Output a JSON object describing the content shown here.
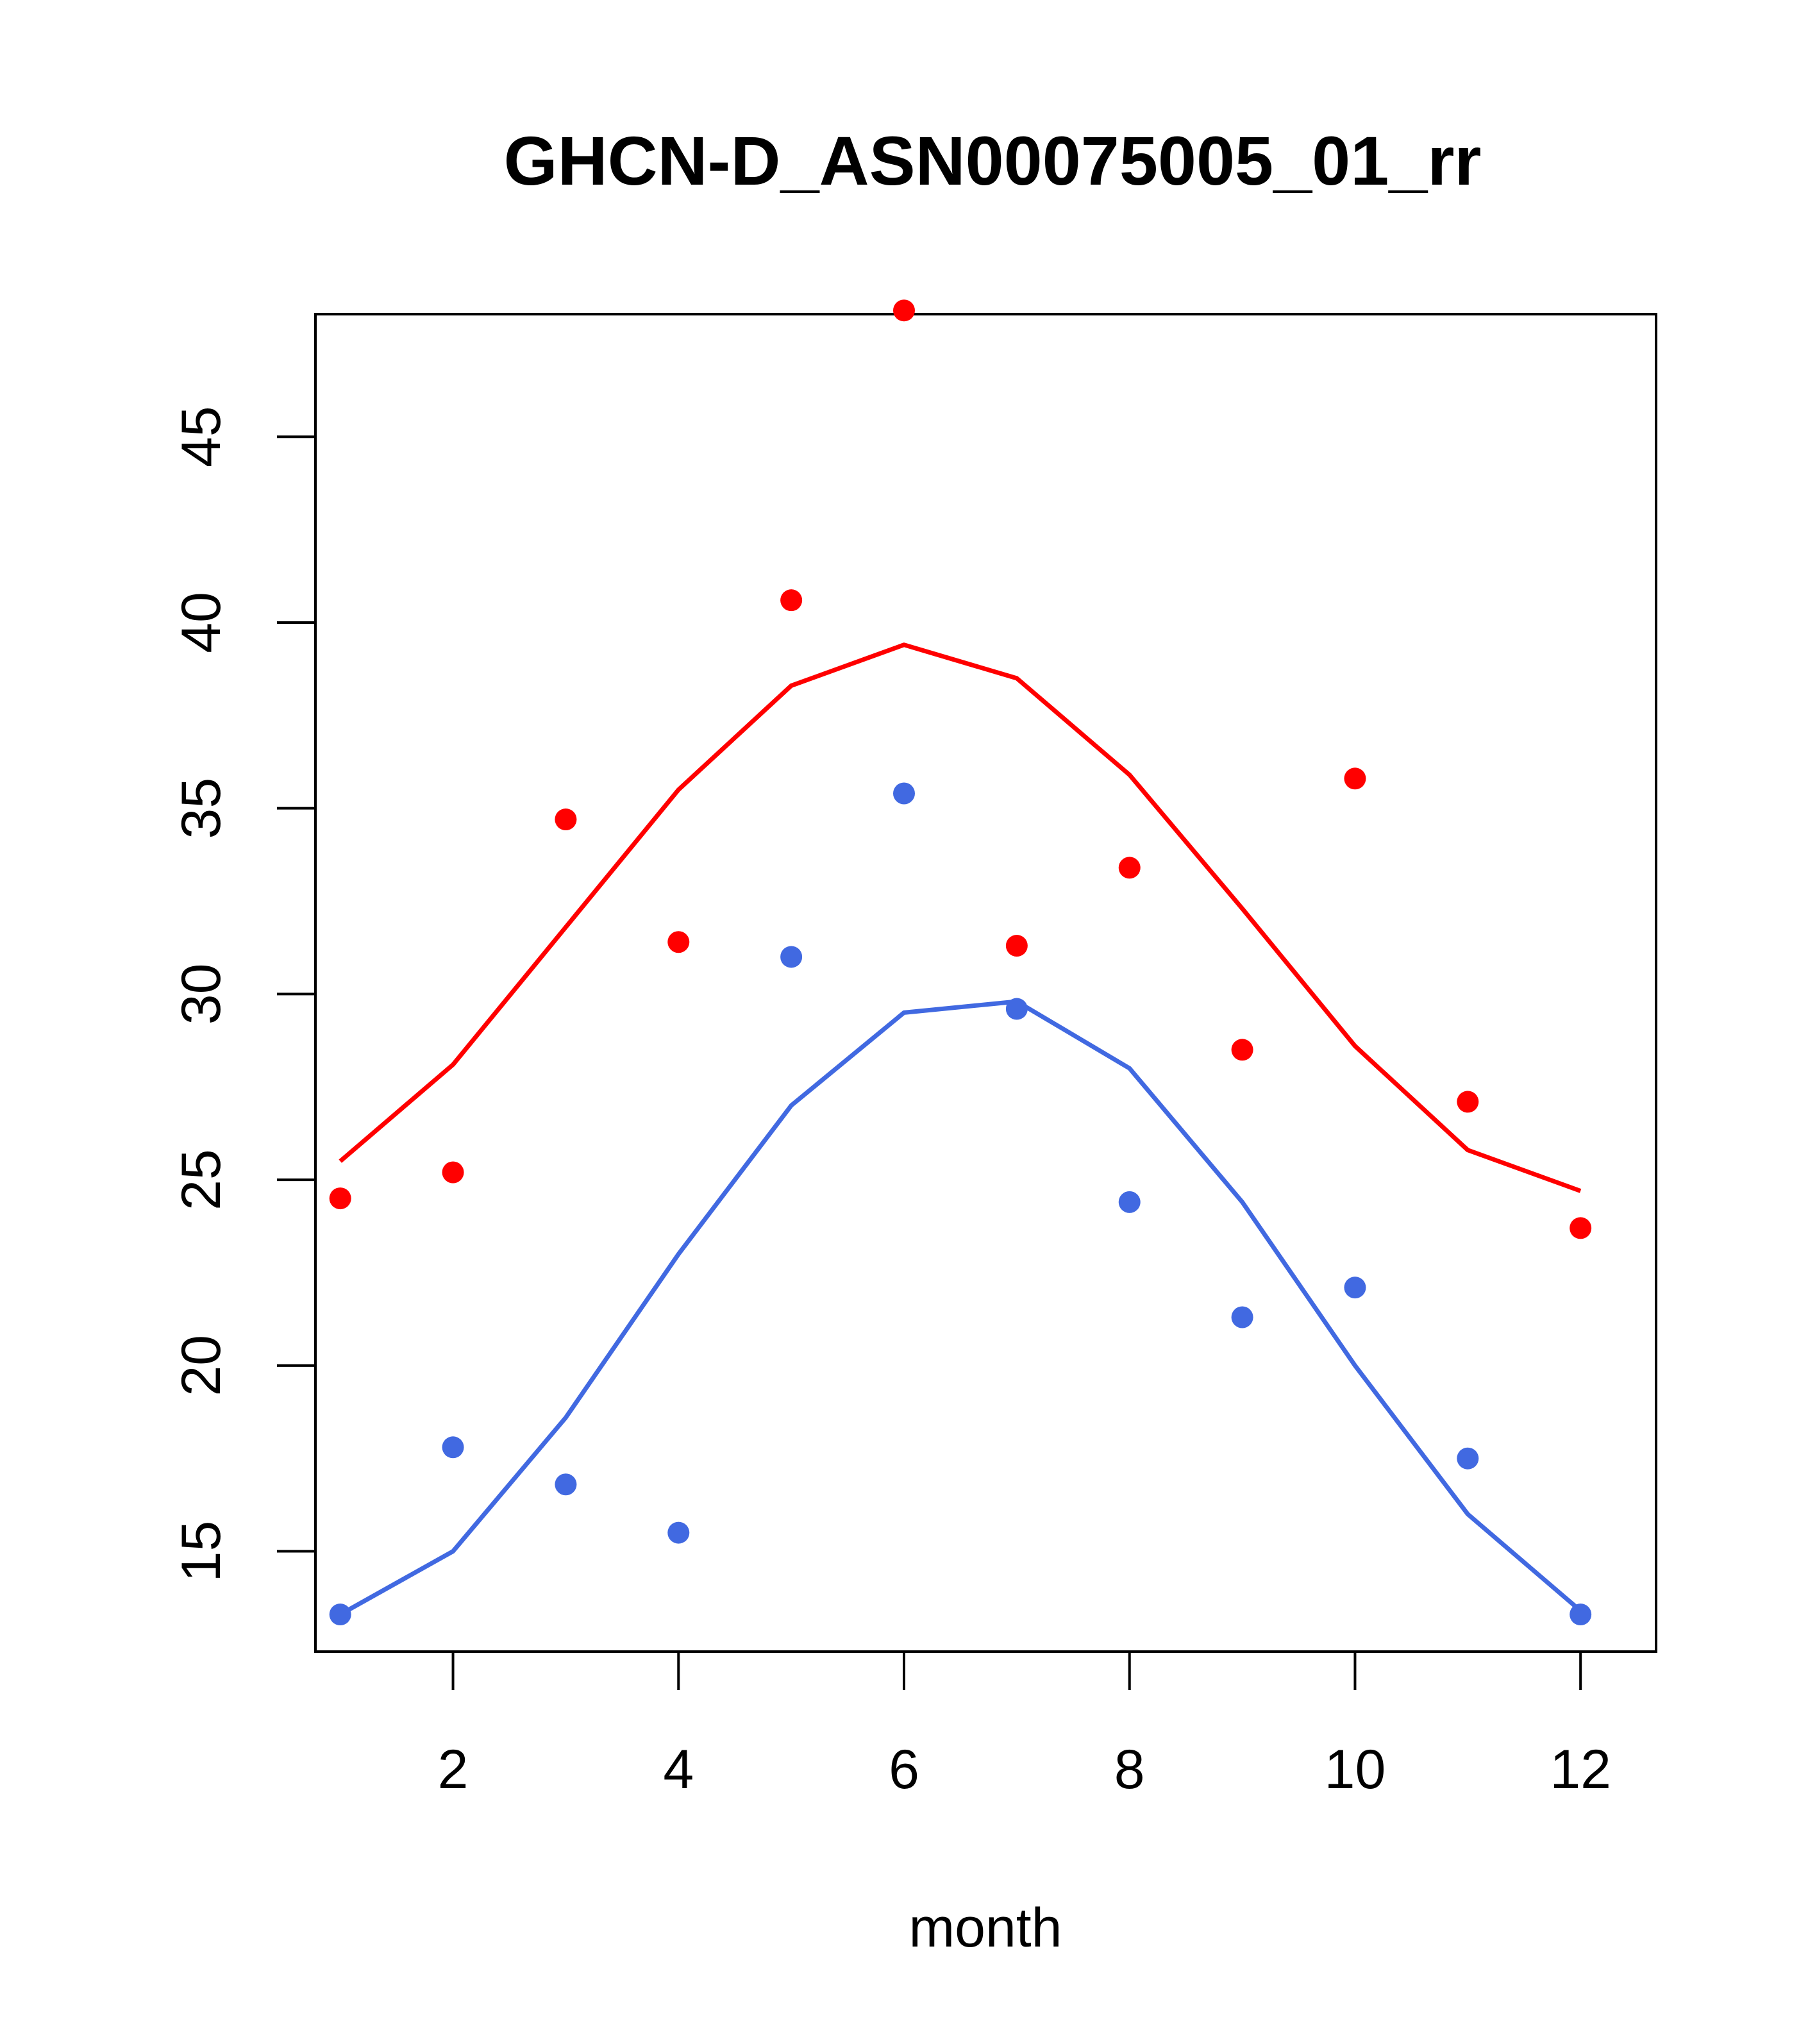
{
  "chart_data": {
    "type": "line",
    "title": "GHCN-D_ASN00075005_01_rr",
    "xlabel": "month",
    "ylabel": "",
    "xlim": [
      0.78,
      12.67
    ],
    "ylim": [
      12.3,
      48.3
    ],
    "x_ticks": [
      2,
      4,
      6,
      8,
      10,
      12
    ],
    "y_ticks": [
      15,
      20,
      25,
      30,
      35,
      40,
      45
    ],
    "grid": false,
    "legend": "none",
    "x": [
      1,
      2,
      3,
      4,
      5,
      6,
      7,
      8,
      9,
      10,
      11,
      12
    ],
    "series": [
      {
        "color": "#ff0000",
        "line": [
          25.5,
          28.1,
          31.8,
          35.5,
          38.3,
          39.4,
          38.5,
          35.9,
          32.3,
          28.6,
          25.8,
          24.7
        ],
        "points": [
          24.5,
          25.2,
          34.7,
          31.4,
          40.6,
          48.4,
          31.3,
          33.4,
          28.5,
          35.8,
          27.1,
          23.7
        ]
      },
      {
        "color": "#4169e1",
        "line": [
          13.3,
          15.0,
          18.6,
          23.0,
          27.0,
          29.5,
          29.8,
          28.0,
          24.4,
          20.0,
          16.0,
          13.4
        ],
        "points": [
          13.3,
          17.8,
          16.8,
          15.5,
          31.0,
          35.4,
          29.6,
          24.4,
          21.3,
          22.1,
          17.5,
          13.3
        ]
      }
    ]
  }
}
